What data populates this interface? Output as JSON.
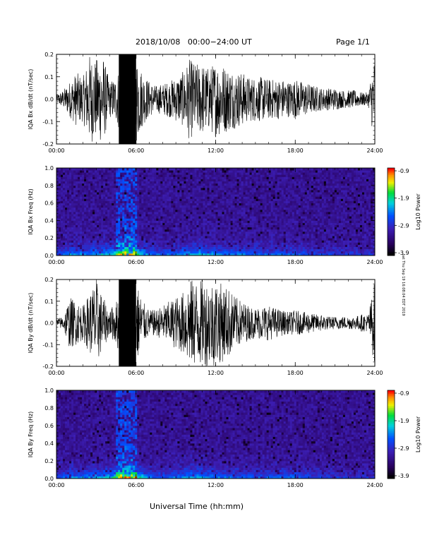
{
  "header": {
    "title": "2018/10/08   00:00−24:00 UT",
    "page": "Page 1/1"
  },
  "footer_stamp": "sat Thu Sep 19 16:08:04 EDT 2019",
  "x_axis_title": "Universal Time (hh:mm)",
  "x_ticks": [
    "00:00",
    "06:00",
    "12:00",
    "18:00",
    "24:00"
  ],
  "colorbar": {
    "label": "Log10 Power",
    "ticks": [
      "-0.9",
      "-1.9",
      "-2.9",
      "-3.9"
    ]
  },
  "colors": {
    "background": "#ffffff",
    "trace": "#000000",
    "spectrogram_base": "#3a1a8c"
  },
  "chart_data": [
    {
      "type": "line",
      "ylabel": "IQA Bx dB/dt (nT/sec)",
      "ylim": [
        -0.2,
        0.2
      ],
      "yticks": [
        "-0.2",
        "-0.1",
        "0.0",
        "0.1",
        "0.2"
      ],
      "xlim": [
        0,
        24
      ],
      "series": [
        {
          "x": [
            0,
            0.5,
            1,
            1.5,
            2,
            2.5,
            3,
            3.5,
            4,
            4.5,
            5,
            5.5,
            6,
            6.5,
            7,
            7.5,
            8,
            8.5,
            9,
            9.5,
            10,
            10.5,
            11,
            11.5,
            12,
            12.5,
            13,
            13.5,
            14,
            14.5,
            15,
            15.5,
            16,
            16.5,
            17,
            17.5,
            18,
            18.5,
            19,
            19.5,
            20,
            20.5,
            21,
            21.5,
            22,
            22.5,
            23,
            23.5,
            24
          ],
          "values": [
            0.02,
            0.04,
            0.08,
            0.12,
            0.1,
            0.2,
            0.18,
            0.2,
            0.08,
            0.1,
            0.2,
            0.2,
            0.2,
            0.12,
            0.08,
            0.06,
            0.07,
            0.08,
            0.1,
            0.12,
            0.18,
            0.16,
            0.16,
            0.14,
            0.17,
            0.16,
            0.14,
            0.13,
            0.12,
            0.1,
            0.1,
            0.1,
            0.09,
            0.09,
            0.09,
            0.08,
            0.09,
            0.08,
            0.07,
            0.06,
            0.05,
            0.05,
            0.05,
            0.04,
            0.04,
            0.04,
            0.03,
            0.03,
            0.2
          ]
        }
      ]
    },
    {
      "type": "heatmap",
      "ylabel": "IQA Bx Freq (Hz)",
      "ylim": [
        0,
        1
      ],
      "yticks": [
        "0.0",
        "0.2",
        "0.4",
        "0.6",
        "0.8",
        "1.0"
      ],
      "xlim": [
        0,
        24
      ],
      "zlabel": "Log10 Power",
      "zlim": [
        -3.9,
        -0.9
      ],
      "activity_x": [
        0,
        1,
        2,
        3,
        4,
        5,
        6,
        7,
        8,
        9,
        10,
        11,
        12,
        13,
        14,
        15,
        16,
        17,
        18,
        19,
        20,
        21,
        22,
        23,
        24
      ],
      "activity": [
        0.3,
        0.6,
        0.5,
        0.6,
        0.7,
        1.0,
        0.9,
        0.5,
        0.4,
        0.5,
        0.6,
        0.7,
        0.55,
        0.5,
        0.5,
        0.45,
        0.4,
        0.5,
        0.45,
        0.35,
        0.3,
        0.3,
        0.25,
        0.25,
        0.25
      ]
    },
    {
      "type": "line",
      "ylabel": "IQA By dB/dt (nT/sec)",
      "ylim": [
        -0.2,
        0.2
      ],
      "yticks": [
        "-0.2",
        "-0.1",
        "0.0",
        "0.1",
        "0.2"
      ],
      "xlim": [
        0,
        24
      ],
      "series": [
        {
          "x": [
            0,
            0.5,
            1,
            1.5,
            2,
            2.5,
            3,
            3.5,
            4,
            4.5,
            5,
            5.5,
            6,
            6.5,
            7,
            7.5,
            8,
            8.5,
            9,
            9.5,
            10,
            10.5,
            11,
            11.5,
            12,
            12.5,
            13,
            13.5,
            14,
            14.5,
            15,
            15.5,
            16,
            16.5,
            17,
            17.5,
            18,
            18.5,
            19,
            19.5,
            20,
            20.5,
            21,
            21.5,
            22,
            22.5,
            23,
            23.5,
            24
          ],
          "values": [
            0.02,
            0.03,
            0.12,
            0.1,
            0.08,
            0.14,
            0.2,
            0.12,
            0.06,
            0.1,
            0.2,
            0.2,
            0.2,
            0.1,
            0.06,
            0.06,
            0.08,
            0.1,
            0.12,
            0.14,
            0.2,
            0.2,
            0.2,
            0.2,
            0.2,
            0.18,
            0.16,
            0.12,
            0.1,
            0.08,
            0.07,
            0.08,
            0.08,
            0.07,
            0.06,
            0.05,
            0.06,
            0.05,
            0.05,
            0.04,
            0.04,
            0.03,
            0.03,
            0.03,
            0.03,
            0.03,
            0.04,
            0.04,
            0.2
          ]
        }
      ]
    },
    {
      "type": "heatmap",
      "ylabel": "IQA By Freq (Hz)",
      "ylim": [
        0,
        1
      ],
      "yticks": [
        "0.0",
        "0.2",
        "0.4",
        "0.6",
        "0.8",
        "1.0"
      ],
      "xlim": [
        0,
        24
      ],
      "zlabel": "Log10 Power",
      "zlim": [
        -3.9,
        -0.9
      ],
      "activity_x": [
        0,
        1,
        2,
        3,
        4,
        5,
        6,
        7,
        8,
        9,
        10,
        11,
        12,
        13,
        14,
        15,
        16,
        17,
        18,
        19,
        20,
        21,
        22,
        23,
        24
      ],
      "activity": [
        0.3,
        0.55,
        0.5,
        0.6,
        0.7,
        1.0,
        0.9,
        0.5,
        0.4,
        0.5,
        0.6,
        0.65,
        0.5,
        0.45,
        0.45,
        0.4,
        0.4,
        0.5,
        0.45,
        0.35,
        0.3,
        0.3,
        0.25,
        0.25,
        0.25
      ]
    }
  ]
}
